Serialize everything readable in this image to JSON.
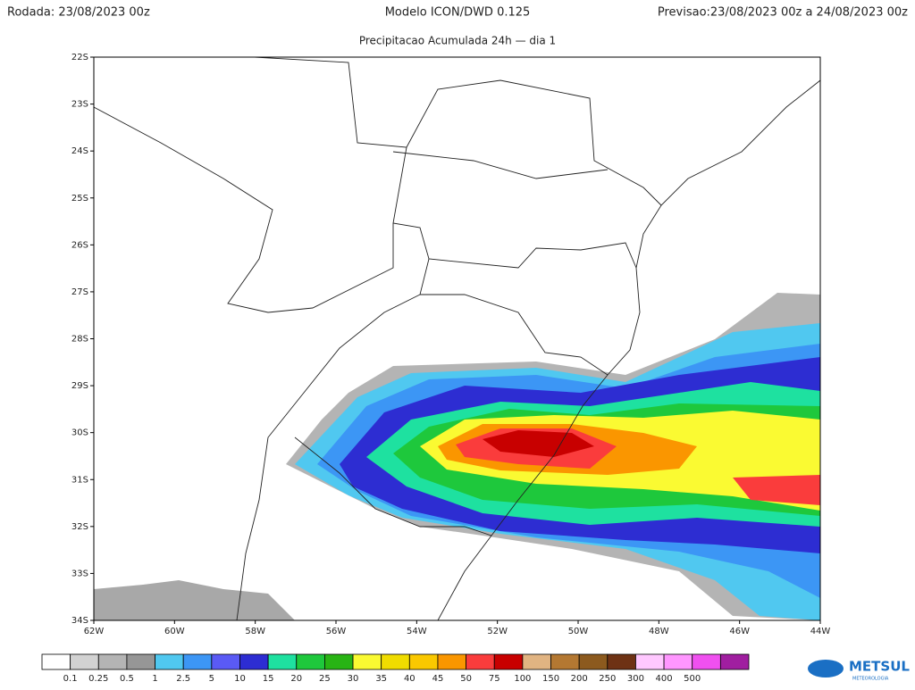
{
  "header": {
    "run": "Rodada: 23/08/2023 00z",
    "model": "Modelo ICON/DWD 0.125",
    "forecast": "Previsao:23/08/2023 00z a 24/08/2023 00z",
    "subtitle": "Precipitacao Acumulada 24h — dia 1"
  },
  "map": {
    "lat_labels": [
      "22S",
      "23S",
      "24S",
      "25S",
      "26S",
      "27S",
      "28S",
      "29S",
      "30S",
      "31S",
      "32S",
      "33S",
      "34S"
    ],
    "lon_labels": [
      "62W",
      "60W",
      "58W",
      "56W",
      "54W",
      "52W",
      "50W",
      "48W",
      "46W",
      "44W"
    ]
  },
  "colorbar": {
    "labels": [
      0.1,
      0.25,
      0.5,
      1,
      2.5,
      5,
      10,
      15,
      20,
      25,
      30,
      35,
      40,
      45,
      50,
      75,
      100,
      150,
      200,
      250,
      300,
      400,
      500
    ],
    "colors": [
      "#ffffff",
      "#d2d2d2",
      "#b4b4b4",
      "#969696",
      "#50c8f0",
      "#3c96f5",
      "#5a5af5",
      "#2d2dd2",
      "#1ee1a0",
      "#1ec83c",
      "#28b414",
      "#fafa32",
      "#f0dc00",
      "#fac800",
      "#fa9600",
      "#fa3c3c",
      "#c80000",
      "#e1b482",
      "#b47832",
      "#8c5a1e",
      "#6e3214",
      "#ffc8ff",
      "#ff96ff",
      "#f050f0",
      "#a01ea0"
    ]
  },
  "logo": {
    "name": "METSUL",
    "tagline": "METEOROLOGIA"
  }
}
